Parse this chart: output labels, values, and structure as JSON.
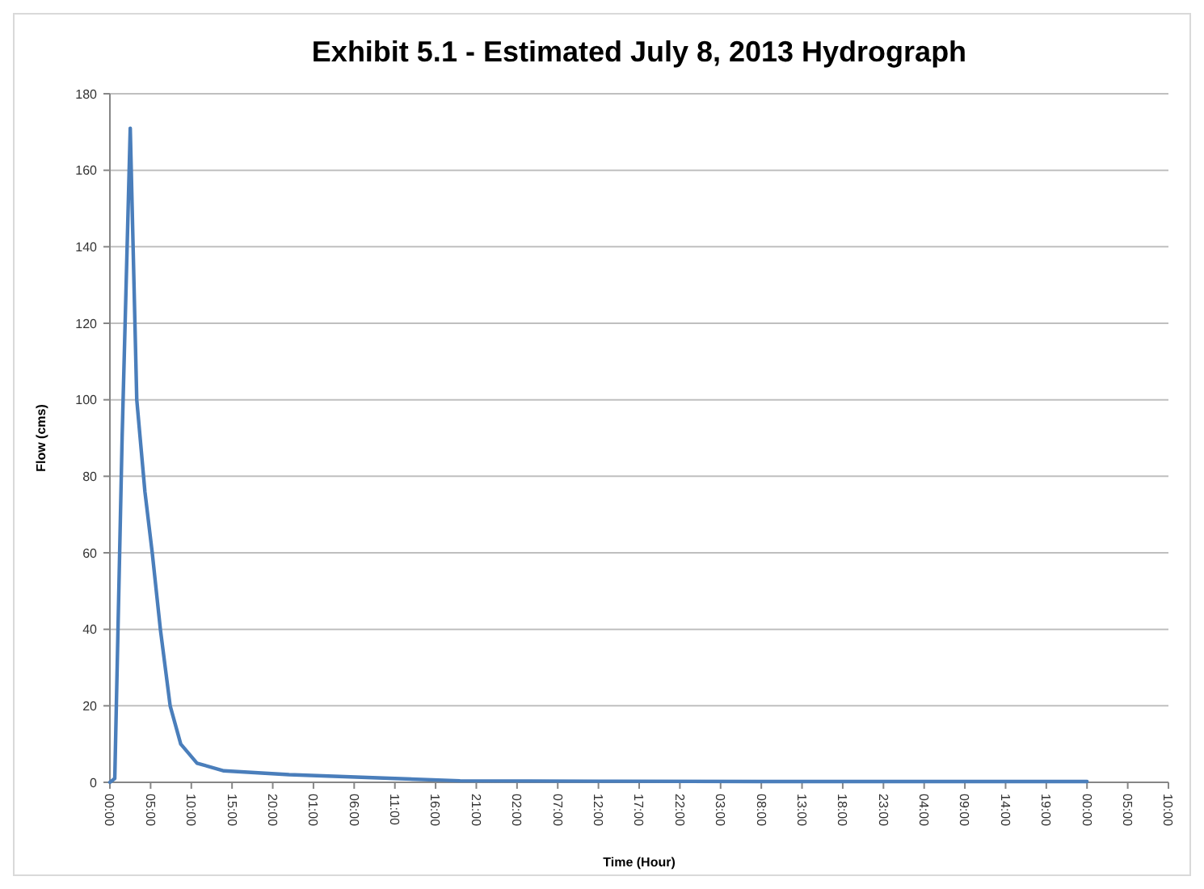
{
  "chart_data": {
    "type": "line",
    "title": "Exhibit 5.1 - Estimated July 8, 2013 Hydrograph",
    "xlabel": "Time (Hour)",
    "ylabel": "Flow (cms)",
    "x": [
      "2013-07-08T00:00",
      "2013-07-08T00:36",
      "2013-07-08T01:30",
      "2013-07-08T02:30",
      "2013-07-08T03:18",
      "2013-07-08T04:18",
      "2013-07-08T05:12",
      "2013-07-08T06:12",
      "2013-07-08T07:24",
      "2013-07-08T08:42",
      "2013-07-08T10:42",
      "2013-07-08T14:00",
      "2013-07-08T22:00",
      "2013-07-09T11:00",
      "2013-07-09T19:00",
      "2013-07-10T12:00",
      "2013-07-11T08:00",
      "2013-07-12T04:00",
      "2013-07-13T00:00"
    ],
    "series": [
      {
        "color": "#4a7ebb",
        "values": [
          0,
          1,
          90,
          171,
          100,
          76,
          60,
          40,
          20,
          10,
          5,
          3,
          2,
          1,
          0.4,
          0.3,
          0.2,
          0.2,
          0.2
        ]
      }
    ],
    "xlim": [
      "2013-07-08T00:00",
      "2013-07-13T10:00"
    ],
    "xticks": [
      {
        "value": "2013-07-08T00:00",
        "label": "00:00"
      },
      {
        "value": "2013-07-08T05:00",
        "label": "05:00"
      },
      {
        "value": "2013-07-08T10:00",
        "label": "10:00"
      },
      {
        "value": "2013-07-08T15:00",
        "label": "15:00"
      },
      {
        "value": "2013-07-08T20:00",
        "label": "20:00"
      },
      {
        "value": "2013-07-09T01:00",
        "label": "01:00"
      },
      {
        "value": "2013-07-09T06:00",
        "label": "06:00"
      },
      {
        "value": "2013-07-09T11:00",
        "label": "11:00"
      },
      {
        "value": "2013-07-09T16:00",
        "label": "16:00"
      },
      {
        "value": "2013-07-09T21:00",
        "label": "21:00"
      },
      {
        "value": "2013-07-10T02:00",
        "label": "02:00"
      },
      {
        "value": "2013-07-10T07:00",
        "label": "07:00"
      },
      {
        "value": "2013-07-10T12:00",
        "label": "12:00"
      },
      {
        "value": "2013-07-10T17:00",
        "label": "17:00"
      },
      {
        "value": "2013-07-10T22:00",
        "label": "22:00"
      },
      {
        "value": "2013-07-11T03:00",
        "label": "03:00"
      },
      {
        "value": "2013-07-11T08:00",
        "label": "08:00"
      },
      {
        "value": "2013-07-11T13:00",
        "label": "13:00"
      },
      {
        "value": "2013-07-11T18:00",
        "label": "18:00"
      },
      {
        "value": "2013-07-11T23:00",
        "label": "23:00"
      },
      {
        "value": "2013-07-12T04:00",
        "label": "04:00"
      },
      {
        "value": "2013-07-12T09:00",
        "label": "09:00"
      },
      {
        "value": "2013-07-12T14:00",
        "label": "14:00"
      },
      {
        "value": "2013-07-12T19:00",
        "label": "19:00"
      },
      {
        "value": "2013-07-13T00:00",
        "label": "00:00"
      },
      {
        "value": "2013-07-13T05:00",
        "label": "05:00"
      },
      {
        "value": "2013-07-13T10:00",
        "label": "10:00"
      }
    ],
    "ylim": [
      0,
      180
    ],
    "yticks": [
      0,
      20,
      40,
      60,
      80,
      100,
      120,
      140,
      160,
      180
    ],
    "grid": "y",
    "marker": "none",
    "line_style": "solid"
  }
}
